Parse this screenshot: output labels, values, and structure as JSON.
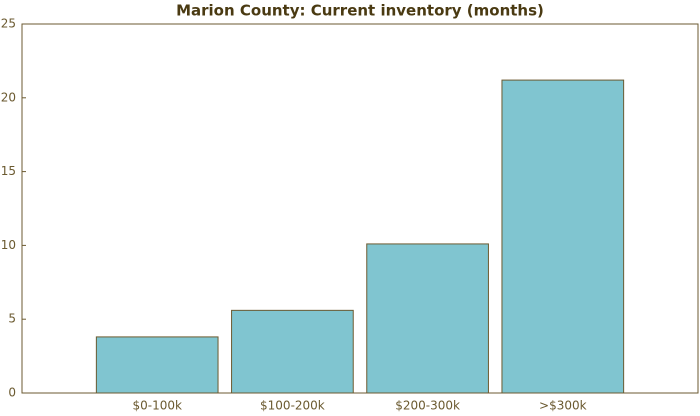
{
  "chart_data": {
    "type": "bar",
    "title": "Marion County: Current inventory (months)",
    "categories": [
      "$0-100k",
      "$100-200k",
      "$200-300k",
      ">$300k"
    ],
    "values": [
      3.8,
      5.6,
      10.1,
      21.2
    ],
    "color": "#80c5d0",
    "ylim": [
      0,
      25
    ],
    "yticks": [
      0,
      5,
      10,
      15,
      20,
      25
    ]
  }
}
